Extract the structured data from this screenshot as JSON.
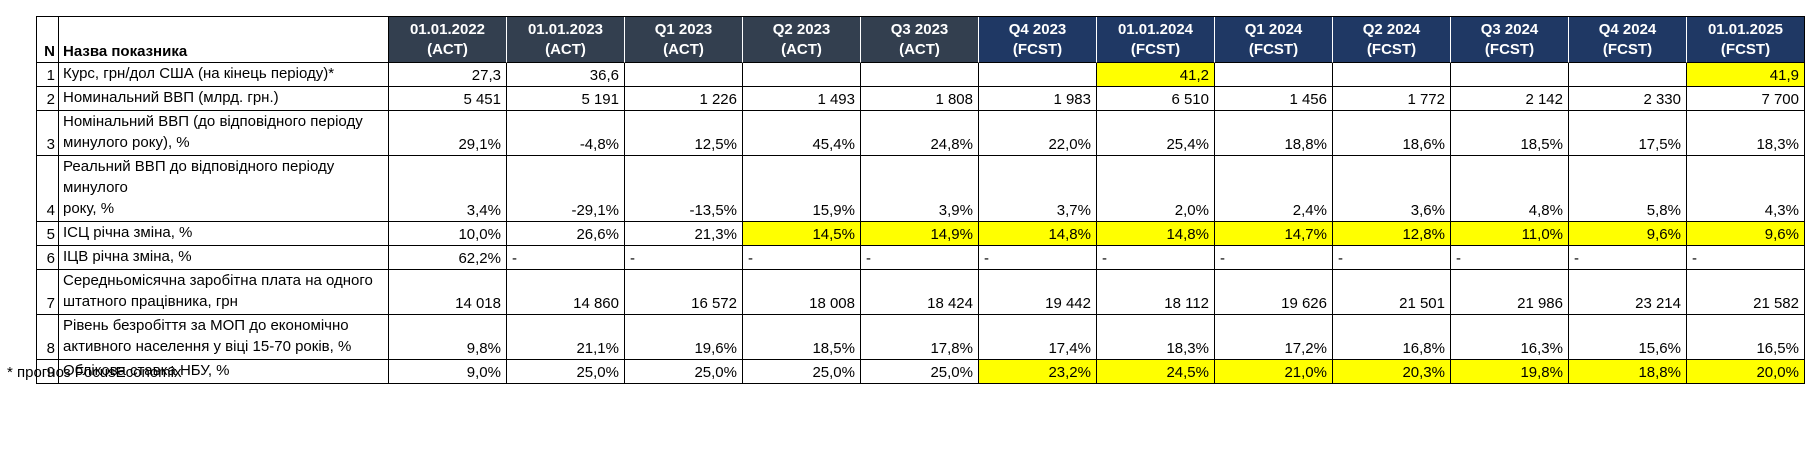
{
  "chart_data": {
    "type": "table",
    "corner": {
      "n": "N",
      "name": "Назва показника"
    },
    "columns": [
      {
        "period": "01.01.2022",
        "status": "(ACT)",
        "group": "act"
      },
      {
        "period": "01.01.2023",
        "status": "(ACT)",
        "group": "act"
      },
      {
        "period": "Q1 2023",
        "status": "(ACT)",
        "group": "act"
      },
      {
        "period": "Q2 2023",
        "status": "(ACT)",
        "group": "act"
      },
      {
        "period": "Q3 2023",
        "status": "(ACT)",
        "group": "act"
      },
      {
        "period": "Q4 2023",
        "status": "(FCST)",
        "group": "fcst"
      },
      {
        "period": "01.01.2024",
        "status": "(FCST)",
        "group": "fcst"
      },
      {
        "period": "Q1 2024",
        "status": "(FCST)",
        "group": "fcst"
      },
      {
        "period": "Q2 2024",
        "status": "(FCST)",
        "group": "fcst"
      },
      {
        "period": "Q3 2024",
        "status": "(FCST)",
        "group": "fcst"
      },
      {
        "period": "Q4 2024",
        "status": "(FCST)",
        "group": "fcst"
      },
      {
        "period": "01.01.2025",
        "status": "(FCST)",
        "group": "fcst"
      }
    ],
    "rows": [
      {
        "n": "1",
        "name": "Курс, грн/дол США (на кінець періоду)*",
        "tall": false,
        "values": [
          "27,3",
          "36,6",
          "",
          "",
          "",
          "",
          "41,2",
          "",
          "",
          "",
          "",
          "41,9"
        ],
        "highlighted": [
          6,
          11
        ]
      },
      {
        "n": "2",
        "name": "Номинальний ВВП (млрд. грн.)",
        "tall": false,
        "values": [
          "5 451",
          "5 191",
          "1 226",
          "1 493",
          "1 808",
          "1 983",
          "6 510",
          "1 456",
          "1 772",
          "2 142",
          "2 330",
          "7 700"
        ],
        "highlighted": []
      },
      {
        "n": "3",
        "name": "Номінальний ВВП (до відповідного періоду\nминулого року), %",
        "tall": true,
        "values": [
          "29,1%",
          "-4,8%",
          "12,5%",
          "45,4%",
          "24,8%",
          "22,0%",
          "25,4%",
          "18,8%",
          "18,6%",
          "18,5%",
          "17,5%",
          "18,3%"
        ],
        "highlighted": []
      },
      {
        "n": "4",
        "name": "Реальний ВВП до відповідного періоду минулого\nроку, %",
        "tall": true,
        "values": [
          "3,4%",
          "-29,1%",
          "-13,5%",
          "15,9%",
          "3,9%",
          "3,7%",
          "2,0%",
          "2,4%",
          "3,6%",
          "4,8%",
          "5,8%",
          "4,3%"
        ],
        "highlighted": []
      },
      {
        "n": "5",
        "name": "ІСЦ річна зміна, %",
        "tall": false,
        "values": [
          "10,0%",
          "26,6%",
          "21,3%",
          "14,5%",
          "14,9%",
          "14,8%",
          "14,8%",
          "14,7%",
          "12,8%",
          "11,0%",
          "9,6%",
          "9,6%"
        ],
        "highlighted": [
          3,
          4,
          5,
          6,
          7,
          8,
          9,
          10,
          11
        ]
      },
      {
        "n": "6",
        "name": "ІЦВ річна зміна, %",
        "tall": false,
        "values": [
          "62,2%",
          "-",
          "-",
          "-",
          "-",
          "-",
          "-",
          "-",
          "-",
          "-",
          "-",
          "-"
        ],
        "highlighted": []
      },
      {
        "n": "7",
        "name": "Середньомісячна заробітна плата на одного\nштатного працівника, грн",
        "tall": true,
        "values": [
          "14 018",
          "14 860",
          "16 572",
          "18 008",
          "18 424",
          "19 442",
          "18 112",
          "19 626",
          "21 501",
          "21 986",
          "23 214",
          "21 582"
        ],
        "highlighted": []
      },
      {
        "n": "8",
        "name": "Рівень безробіття за МОП до економічно\nактивного населення у віці 15-70 років, %",
        "tall": true,
        "values": [
          "9,8%",
          "21,1%",
          "19,6%",
          "18,5%",
          "17,8%",
          "17,4%",
          "18,3%",
          "17,2%",
          "16,8%",
          "16,3%",
          "15,6%",
          "16,5%"
        ],
        "highlighted": []
      },
      {
        "n": "9",
        "name": "Облікова ставка НБУ, %",
        "tall": false,
        "values": [
          "9,0%",
          "25,0%",
          "25,0%",
          "25,0%",
          "25,0%",
          "23,2%",
          "24,5%",
          "21,0%",
          "20,3%",
          "19,8%",
          "18,8%",
          "20,0%"
        ],
        "highlighted": [
          5,
          6,
          7,
          8,
          9,
          10,
          11
        ]
      }
    ],
    "layout": {
      "n_col_width": 22,
      "name_col_width": 330,
      "data_col_width": 118
    }
  },
  "footnote": "* прогноз FocusEconomix",
  "colors": {
    "act_header_bg": "#333F4F",
    "fcst_header_bg": "#1F3864",
    "header_text": "#FFFFFF",
    "highlight_bg": "#FFFF00"
  }
}
